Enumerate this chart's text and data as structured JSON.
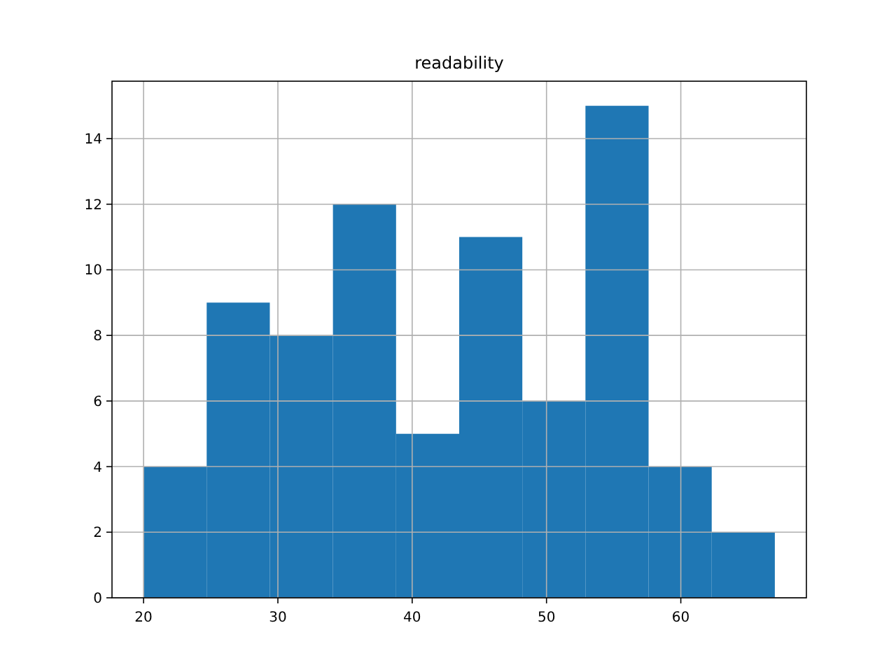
{
  "chart_data": {
    "type": "histogram",
    "title": "readability",
    "bins": [
      20,
      24.7,
      29.4,
      34.1,
      38.8,
      43.5,
      48.2,
      52.9,
      57.6,
      62.3,
      67
    ],
    "values": [
      4,
      9,
      8,
      12,
      5,
      11,
      6,
      15,
      4,
      2
    ],
    "color": "#1f77b4",
    "xlim": [
      17.65,
      69.35
    ],
    "xticks": [
      20,
      30,
      40,
      50,
      60
    ],
    "ylim": [
      0,
      15.75
    ],
    "yticks": [
      0,
      2,
      4,
      6,
      8,
      10,
      12,
      14
    ],
    "grid": true
  }
}
